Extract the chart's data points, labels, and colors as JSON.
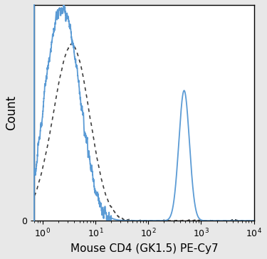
{
  "title": "",
  "xlabel": "Mouse CD4 (GK1.5) PE-Cy7",
  "ylabel": "Count",
  "xmin": 0.7,
  "xmax": 10000,
  "ymin": 0,
  "ymax": 1.0,
  "solid_color": "#5b9bd5",
  "dashed_color": "#404040",
  "background_color": "#e8e8e8",
  "plot_bg_color": "#ffffff",
  "solid_linewidth": 1.3,
  "dashed_linewidth": 1.2,
  "seed": 12
}
